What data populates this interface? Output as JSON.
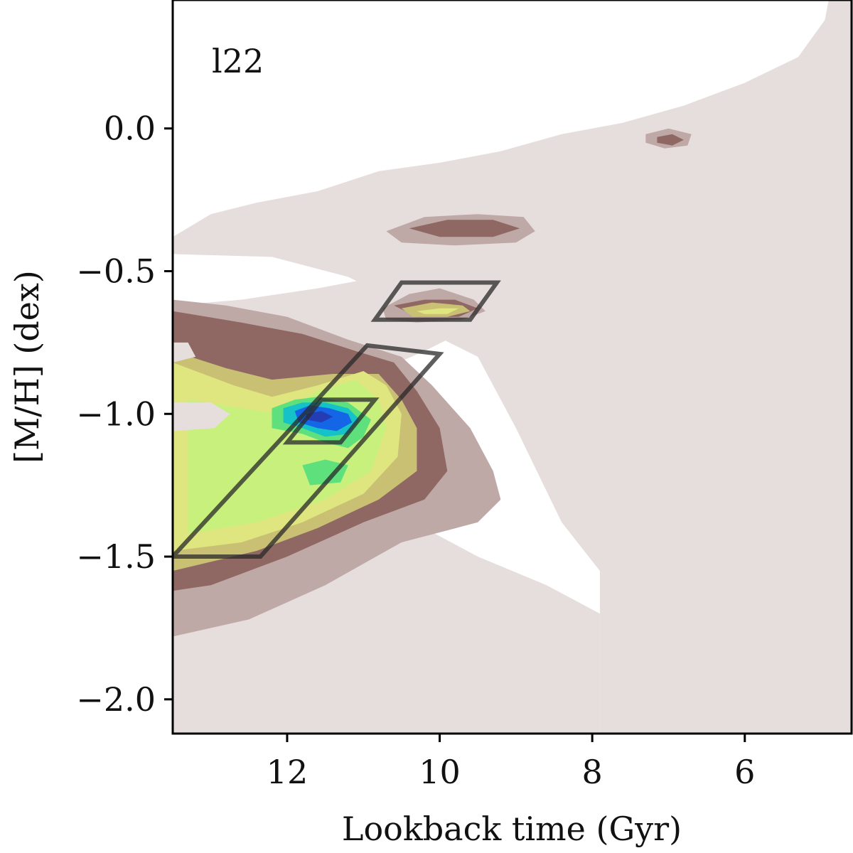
{
  "chart_data": {
    "type": "heatmap",
    "panel_label": "l22",
    "xlabel": "Lookback time (Gyr)",
    "ylabel": "[M/H] (dex)",
    "xlim": [
      13.5,
      4.6
    ],
    "ylim": [
      -2.12,
      0.45
    ],
    "x_ticks": [
      12,
      10,
      8,
      6
    ],
    "y_ticks": [
      0.0,
      -0.5,
      -1.0,
      -1.5,
      -2.0
    ],
    "x_tick_labels": [
      "12",
      "10",
      "8",
      "6"
    ],
    "y_tick_labels": [
      "0.0",
      "−0.5",
      "−1.0",
      "−1.5",
      "−2.0"
    ],
    "grid": false,
    "levels": [
      {
        "level": 1,
        "color": "#e6dedc"
      },
      {
        "level": 2,
        "color": "#bfa9a7"
      },
      {
        "level": 3,
        "color": "#8f6864"
      },
      {
        "level": 4,
        "color": "#c9c074"
      },
      {
        "level": 5,
        "color": "#dfe680"
      },
      {
        "level": 6,
        "color": "#c8f07c"
      },
      {
        "level": 7,
        "color": "#5ee07c"
      },
      {
        "level": 8,
        "color": "#14c2c8"
      },
      {
        "level": 9,
        "color": "#1466e6"
      },
      {
        "level": 10,
        "color": "#243cb4"
      }
    ],
    "regions": [
      {
        "level": 1,
        "points": [
          [
            13.5,
            -0.38
          ],
          [
            13.0,
            -0.3
          ],
          [
            12.4,
            -0.26
          ],
          [
            11.6,
            -0.22
          ],
          [
            10.8,
            -0.15
          ],
          [
            10.0,
            -0.12
          ],
          [
            9.2,
            -0.08
          ],
          [
            8.4,
            -0.02
          ],
          [
            7.6,
            0.02
          ],
          [
            6.8,
            0.08
          ],
          [
            6.0,
            0.16
          ],
          [
            5.3,
            0.25
          ],
          [
            4.95,
            0.38
          ],
          [
            4.9,
            0.45
          ],
          [
            4.6,
            0.45
          ],
          [
            4.6,
            -2.12
          ],
          [
            7.9,
            -2.12
          ],
          [
            7.9,
            -1.55
          ],
          [
            8.4,
            -1.38
          ],
          [
            9.0,
            -1.05
          ],
          [
            9.5,
            -0.8
          ],
          [
            10.1,
            -0.72
          ],
          [
            10.6,
            -0.6
          ],
          [
            11.2,
            -0.52
          ],
          [
            12.2,
            -0.45
          ],
          [
            13.5,
            -0.44
          ]
        ]
      },
      {
        "level": 1,
        "points": [
          [
            13.5,
            -0.62
          ],
          [
            12.6,
            -0.6
          ],
          [
            11.6,
            -0.56
          ],
          [
            10.8,
            -0.52
          ],
          [
            9.6,
            -0.48
          ],
          [
            9.0,
            -0.46
          ],
          [
            9.0,
            -0.62
          ],
          [
            9.6,
            -0.7
          ],
          [
            10.2,
            -0.78
          ],
          [
            10.8,
            -0.85
          ],
          [
            11.6,
            -0.9
          ],
          [
            12.6,
            -1.0
          ],
          [
            13.5,
            -1.05
          ]
        ]
      },
      {
        "level": 1,
        "points": [
          [
            13.5,
            -1.5
          ],
          [
            12.4,
            -1.48
          ],
          [
            11.2,
            -1.42
          ],
          [
            10.2,
            -1.4
          ],
          [
            9.5,
            -1.5
          ],
          [
            8.6,
            -1.6
          ],
          [
            7.9,
            -1.7
          ],
          [
            7.9,
            -2.12
          ],
          [
            13.5,
            -2.12
          ]
        ]
      },
      {
        "level": 2,
        "points": [
          [
            13.5,
            -0.6
          ],
          [
            12.8,
            -0.62
          ],
          [
            12.0,
            -0.66
          ],
          [
            11.2,
            -0.74
          ],
          [
            10.5,
            -0.8
          ],
          [
            10.1,
            -0.9
          ],
          [
            9.6,
            -1.05
          ],
          [
            9.3,
            -1.2
          ],
          [
            9.2,
            -1.3
          ],
          [
            9.5,
            -1.38
          ],
          [
            10.5,
            -1.45
          ],
          [
            11.5,
            -1.6
          ],
          [
            12.5,
            -1.72
          ],
          [
            13.5,
            -1.78
          ]
        ]
      },
      {
        "level": 2,
        "points": [
          [
            10.75,
            -0.63
          ],
          [
            10.4,
            -0.58
          ],
          [
            10.0,
            -0.56
          ],
          [
            9.55,
            -0.6
          ],
          [
            9.4,
            -0.64
          ],
          [
            9.7,
            -0.67
          ],
          [
            10.3,
            -0.68
          ],
          [
            10.7,
            -0.67
          ]
        ]
      },
      {
        "level": 2,
        "points": [
          [
            10.7,
            -0.36
          ],
          [
            10.2,
            -0.31
          ],
          [
            9.5,
            -0.3
          ],
          [
            8.9,
            -0.31
          ],
          [
            8.75,
            -0.36
          ],
          [
            9.0,
            -0.4
          ],
          [
            9.8,
            -0.41
          ],
          [
            10.5,
            -0.4
          ]
        ]
      },
      {
        "level": 2,
        "points": [
          [
            7.3,
            -0.02
          ],
          [
            7.0,
            0.0
          ],
          [
            6.7,
            -0.02
          ],
          [
            6.75,
            -0.06
          ],
          [
            7.05,
            -0.07
          ],
          [
            7.3,
            -0.05
          ]
        ]
      },
      {
        "level": 3,
        "points": [
          [
            13.5,
            -0.64
          ],
          [
            12.6,
            -0.68
          ],
          [
            11.8,
            -0.72
          ],
          [
            11.1,
            -0.78
          ],
          [
            10.6,
            -0.82
          ],
          [
            10.3,
            -0.92
          ],
          [
            10.0,
            -1.05
          ],
          [
            9.9,
            -1.2
          ],
          [
            10.2,
            -1.3
          ],
          [
            11.0,
            -1.38
          ],
          [
            12.0,
            -1.5
          ],
          [
            13.0,
            -1.6
          ],
          [
            13.5,
            -1.62
          ]
        ]
      },
      {
        "level": 3,
        "points": [
          [
            10.6,
            -0.62
          ],
          [
            10.2,
            -0.6
          ],
          [
            9.8,
            -0.6
          ],
          [
            9.5,
            -0.63
          ],
          [
            9.75,
            -0.66
          ],
          [
            10.3,
            -0.66
          ]
        ]
      },
      {
        "level": 3,
        "points": [
          [
            10.4,
            -0.35
          ],
          [
            9.9,
            -0.32
          ],
          [
            9.3,
            -0.32
          ],
          [
            8.95,
            -0.35
          ],
          [
            9.3,
            -0.38
          ],
          [
            10.0,
            -0.38
          ]
        ]
      },
      {
        "level": 3,
        "points": [
          [
            7.15,
            -0.03
          ],
          [
            6.95,
            -0.02
          ],
          [
            6.8,
            -0.04
          ],
          [
            6.95,
            -0.06
          ],
          [
            7.15,
            -0.05
          ]
        ]
      },
      {
        "level": 4,
        "points": [
          [
            13.5,
            -0.78
          ],
          [
            12.8,
            -0.84
          ],
          [
            12.2,
            -0.88
          ],
          [
            11.4,
            -0.86
          ],
          [
            10.8,
            -0.86
          ],
          [
            10.5,
            -0.95
          ],
          [
            10.3,
            -1.05
          ],
          [
            10.3,
            -1.2
          ],
          [
            10.8,
            -1.3
          ],
          [
            11.6,
            -1.4
          ],
          [
            12.4,
            -1.48
          ],
          [
            13.5,
            -1.55
          ]
        ]
      },
      {
        "level": 4,
        "points": [
          [
            10.5,
            -0.63
          ],
          [
            10.1,
            -0.61
          ],
          [
            9.7,
            -0.62
          ],
          [
            9.6,
            -0.64
          ],
          [
            9.9,
            -0.66
          ],
          [
            10.35,
            -0.66
          ]
        ]
      },
      {
        "level": 5,
        "points": [
          [
            13.5,
            -0.82
          ],
          [
            12.7,
            -0.9
          ],
          [
            12.2,
            -0.94
          ],
          [
            11.6,
            -0.9
          ],
          [
            11.0,
            -0.85
          ],
          [
            10.7,
            -0.9
          ],
          [
            10.5,
            -1.0
          ],
          [
            10.55,
            -1.15
          ],
          [
            11.0,
            -1.28
          ],
          [
            11.8,
            -1.38
          ],
          [
            12.6,
            -1.45
          ],
          [
            13.5,
            -1.48
          ]
        ]
      },
      {
        "level": 5,
        "points": [
          [
            10.3,
            -0.64
          ],
          [
            10.0,
            -0.63
          ],
          [
            9.75,
            -0.63
          ],
          [
            9.9,
            -0.65
          ],
          [
            10.2,
            -0.65
          ]
        ]
      },
      {
        "level": 6,
        "points": [
          [
            13.3,
            -0.95
          ],
          [
            12.6,
            -0.98
          ],
          [
            12.1,
            -1.0
          ],
          [
            11.6,
            -0.92
          ],
          [
            11.1,
            -0.88
          ],
          [
            10.8,
            -0.95
          ],
          [
            10.7,
            -1.05
          ],
          [
            10.9,
            -1.2
          ],
          [
            11.5,
            -1.3
          ],
          [
            12.4,
            -1.38
          ],
          [
            13.3,
            -1.42
          ]
        ]
      },
      {
        "level": 7,
        "points": [
          [
            12.2,
            -0.98
          ],
          [
            11.9,
            -0.95
          ],
          [
            11.6,
            -0.94
          ],
          [
            11.2,
            -0.96
          ],
          [
            10.9,
            -1.02
          ],
          [
            11.0,
            -1.08
          ],
          [
            11.2,
            -1.12
          ],
          [
            11.5,
            -1.1
          ],
          [
            11.8,
            -1.07
          ],
          [
            12.2,
            -1.05
          ]
        ]
      },
      {
        "level": 7,
        "points": [
          [
            11.8,
            -1.18
          ],
          [
            11.5,
            -1.16
          ],
          [
            11.2,
            -1.18
          ],
          [
            11.3,
            -1.24
          ],
          [
            11.7,
            -1.25
          ]
        ]
      },
      {
        "level": 8,
        "points": [
          [
            12.05,
            -0.98
          ],
          [
            11.8,
            -0.96
          ],
          [
            11.5,
            -0.96
          ],
          [
            11.2,
            -0.98
          ],
          [
            11.05,
            -1.02
          ],
          [
            11.2,
            -1.07
          ],
          [
            11.5,
            -1.08
          ],
          [
            11.8,
            -1.05
          ],
          [
            12.05,
            -1.03
          ]
        ]
      },
      {
        "level": 9,
        "points": [
          [
            11.9,
            -0.99
          ],
          [
            11.7,
            -0.97
          ],
          [
            11.45,
            -0.98
          ],
          [
            11.2,
            -1.0
          ],
          [
            11.15,
            -1.03
          ],
          [
            11.35,
            -1.06
          ],
          [
            11.6,
            -1.05
          ],
          [
            11.85,
            -1.03
          ]
        ]
      },
      {
        "level": 10,
        "points": [
          [
            11.75,
            -1.0
          ],
          [
            11.55,
            -0.99
          ],
          [
            11.4,
            -1.01
          ],
          [
            11.55,
            -1.03
          ],
          [
            11.75,
            -1.02
          ]
        ]
      },
      {
        "level": 1,
        "points": [
          [
            13.5,
            -0.96
          ],
          [
            13.0,
            -0.96
          ],
          [
            12.75,
            -1.0
          ],
          [
            12.95,
            -1.05
          ],
          [
            13.5,
            -1.06
          ]
        ]
      },
      {
        "level": 1,
        "points": [
          [
            13.5,
            -0.75
          ],
          [
            13.3,
            -0.75
          ],
          [
            13.2,
            -0.8
          ],
          [
            13.5,
            -0.82
          ]
        ]
      }
    ],
    "outlines": [
      {
        "name": "",
        "points": [
          [
            13.5,
            -1.5
          ],
          [
            12.35,
            -1.5
          ],
          [
            10.0,
            -0.79
          ],
          [
            10.95,
            -0.76
          ]
        ]
      },
      {
        "name": "",
        "points": [
          [
            12.0,
            -1.1
          ],
          [
            11.3,
            -1.1
          ],
          [
            10.85,
            -0.95
          ],
          [
            11.55,
            -0.95
          ]
        ]
      },
      {
        "name": "",
        "points": [
          [
            10.85,
            -0.67
          ],
          [
            9.6,
            -0.67
          ],
          [
            9.25,
            -0.54
          ],
          [
            10.5,
            -0.54
          ]
        ]
      }
    ]
  }
}
